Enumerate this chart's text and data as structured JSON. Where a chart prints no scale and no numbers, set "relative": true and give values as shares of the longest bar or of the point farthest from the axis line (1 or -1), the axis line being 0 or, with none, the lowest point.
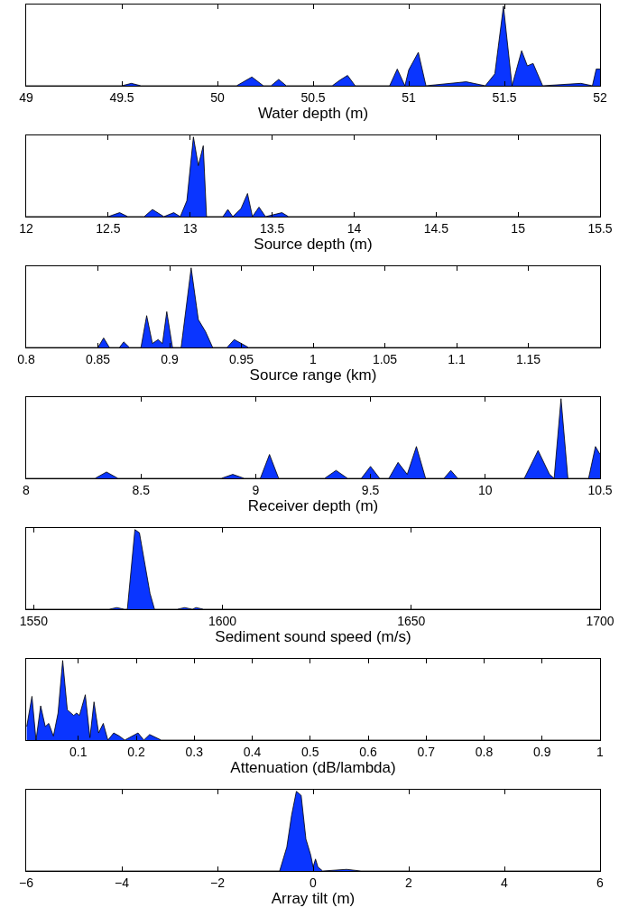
{
  "chart_data": [
    {
      "type": "area",
      "relative": true,
      "tick_labels": "x",
      "color": "#0a35ff",
      "xlabel": "Water depth (m)",
      "xlim": [
        49,
        52
      ],
      "xticks": [
        49,
        49.5,
        50,
        50.5,
        51,
        51.5,
        52
      ],
      "x": [
        49,
        49.5,
        49.55,
        49.6,
        50.1,
        50.18,
        50.24,
        50.28,
        50.32,
        50.36,
        50.6,
        50.64,
        50.68,
        50.72,
        50.9,
        50.94,
        50.98,
        51.0,
        51.05,
        51.09,
        51.3,
        51.4,
        51.45,
        51.495,
        51.54,
        51.59,
        51.62,
        51.65,
        51.7,
        51.9,
        51.96,
        51.98,
        52
      ],
      "values": [
        0,
        0,
        0.03,
        0,
        0,
        0.11,
        0,
        0,
        0.08,
        0,
        0,
        0.07,
        0.13,
        0,
        0,
        0.21,
        0,
        0.2,
        0.42,
        0,
        0.05,
        0,
        0.15,
        1,
        0,
        0.44,
        0.25,
        0.28,
        0,
        0.03,
        0,
        0.21,
        0.21
      ]
    },
    {
      "type": "area",
      "relative": true,
      "tick_labels": "x",
      "color": "#0a35ff",
      "xlabel": "Source depth (m)",
      "xlim": [
        12,
        15.5
      ],
      "xticks": [
        12,
        12.5,
        13,
        13.5,
        14,
        14.5,
        15,
        15.5
      ],
      "x": [
        12,
        12.5,
        12.57,
        12.62,
        12.72,
        12.77,
        12.84,
        12.9,
        12.94,
        12.98,
        13.02,
        13.05,
        13.08,
        13.1,
        13.2,
        13.23,
        13.26,
        13.31,
        13.35,
        13.38,
        13.42,
        13.46,
        13.56,
        13.6,
        15.5
      ],
      "values": [
        0,
        0,
        0.05,
        0,
        0,
        0.09,
        0,
        0.05,
        0,
        0.2,
        1,
        0.64,
        0.89,
        0,
        0,
        0.09,
        0,
        0.1,
        0.29,
        0,
        0.12,
        0,
        0.05,
        0,
        0
      ]
    },
    {
      "type": "area",
      "relative": true,
      "tick_labels": "x",
      "color": "#0a35ff",
      "xlabel": "Source range (km)",
      "xlim": [
        0.8,
        1.2
      ],
      "xticks": [
        0.8,
        0.85,
        0.9,
        0.95,
        1,
        1.05,
        1.1,
        1.15
      ],
      "x": [
        0.8,
        0.85,
        0.854,
        0.858,
        0.865,
        0.868,
        0.872,
        0.88,
        0.884,
        0.888,
        0.892,
        0.895,
        0.898,
        0.902,
        0.908,
        0.915,
        0.92,
        0.925,
        0.93,
        0.94,
        0.945,
        0.95,
        0.955,
        1.2
      ],
      "values": [
        0,
        0,
        0.12,
        0,
        0,
        0.07,
        0,
        0,
        0.4,
        0.05,
        0.1,
        0.05,
        0.45,
        0,
        0,
        1,
        0.35,
        0.2,
        0,
        0,
        0.1,
        0.05,
        0,
        0
      ]
    },
    {
      "type": "area",
      "relative": true,
      "tick_labels": "x",
      "color": "#0a35ff",
      "xlabel": "Receiver depth (m)",
      "xlim": [
        8,
        10.5
      ],
      "xticks": [
        8,
        8.5,
        9,
        9.5,
        10,
        10.5
      ],
      "x": [
        8,
        8.3,
        8.35,
        8.4,
        8.85,
        8.9,
        8.95,
        9.02,
        9.06,
        9.1,
        9.3,
        9.35,
        9.4,
        9.46,
        9.5,
        9.54,
        9.58,
        9.62,
        9.66,
        9.7,
        9.74,
        9.82,
        9.85,
        9.88,
        10.17,
        10.23,
        10.28,
        10.3,
        10.33,
        10.36,
        10.45,
        10.48,
        10.5
      ],
      "values": [
        0,
        0,
        0.08,
        0,
        0,
        0.05,
        0,
        0,
        0.3,
        0,
        0,
        0.1,
        0,
        0,
        0.15,
        0,
        0,
        0.2,
        0.05,
        0.4,
        0,
        0,
        0.1,
        0,
        0,
        0.35,
        0.05,
        0,
        1,
        0,
        0,
        0.4,
        0.3
      ]
    },
    {
      "type": "area",
      "relative": true,
      "tick_labels": "x",
      "color": "#0a35ff",
      "xlabel": "Sediment sound speed (m/s)",
      "xlim": [
        1548,
        1700
      ],
      "xticks": [
        1550,
        1600,
        1650,
        1700
      ],
      "x": [
        1548,
        1570,
        1572,
        1574,
        1574.8,
        1576.8,
        1578,
        1580.8,
        1582,
        1588,
        1590,
        1592,
        1593,
        1595,
        1700
      ],
      "values": [
        0,
        0,
        0.02,
        0,
        0,
        1,
        0.96,
        0.2,
        0,
        0,
        0.02,
        0,
        0.02,
        0,
        0
      ]
    },
    {
      "type": "area",
      "relative": true,
      "tick_labels": "x",
      "color": "#0a35ff",
      "xlabel": "Attenuation (dB/lambda)",
      "xlim": [
        0.01,
        1
      ],
      "xticks": [
        0.1,
        0.2,
        0.3,
        0.4,
        0.5,
        0.6,
        0.7,
        0.8,
        0.9,
        1
      ],
      "x": [
        0.011,
        0.02,
        0.027,
        0.035,
        0.043,
        0.049,
        0.057,
        0.065,
        0.073,
        0.081,
        0.092,
        0.097,
        0.102,
        0.112,
        0.12,
        0.127,
        0.135,
        0.143,
        0.151,
        0.161,
        0.171,
        0.18,
        0.203,
        0.213,
        0.223,
        0.243,
        1
      ],
      "values": [
        0.17,
        0.55,
        0,
        0.43,
        0.17,
        0.21,
        0.05,
        0.34,
        1,
        0.38,
        0.31,
        0.34,
        0.31,
        0.57,
        0.03,
        0.48,
        0.09,
        0.21,
        0,
        0.09,
        0.05,
        0,
        0.09,
        0,
        0.07,
        0,
        0
      ]
    },
    {
      "type": "area",
      "relative": true,
      "tick_labels": "x",
      "color": "#0a35ff",
      "xlabel": "Array tilt (m)",
      "xlim": [
        -6,
        6
      ],
      "xticks": [
        {
          "value": -6,
          "label": "−6"
        },
        {
          "value": -4,
          "label": "−4"
        },
        {
          "value": -2,
          "label": "−2"
        },
        0,
        2,
        4,
        6
      ],
      "x": [
        -6,
        -0.7,
        -0.55,
        -0.45,
        -0.35,
        -0.25,
        -0.15,
        -0.05,
        0,
        0.05,
        0.1,
        0.2,
        0.7,
        1,
        6
      ],
      "values": [
        0,
        0,
        0.3,
        0.7,
        1,
        0.95,
        0.4,
        0.2,
        0.05,
        0.15,
        0.05,
        0,
        0.02,
        0,
        0
      ]
    }
  ]
}
